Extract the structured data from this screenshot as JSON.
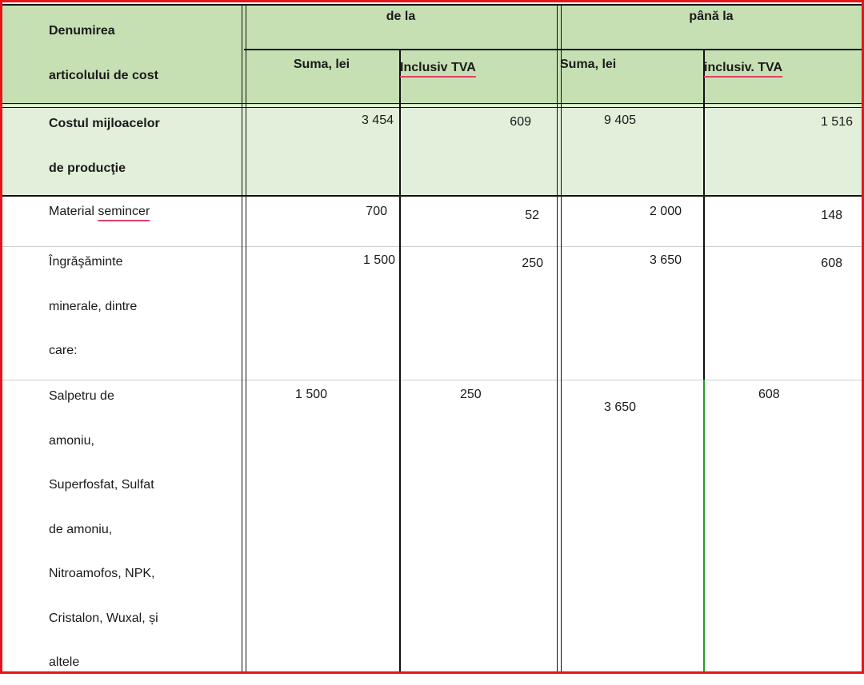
{
  "header": {
    "col_name": "Denumirea\narticolului  de cost",
    "group_from": "de la",
    "group_to": "până la",
    "from_sum": "Suma, lei",
    "from_vat": "Inclusiv TVA",
    "to_sum": "Suma, lei",
    "to_vat": "inclusiv. TVA"
  },
  "rows": [
    {
      "name": "Costul   mijloacelor\nde producţie",
      "from_sum": "3 454",
      "from_vat": "609",
      "to_sum": "9 405",
      "to_vat": "1 516"
    },
    {
      "name_pre": "Material ",
      "name_squiggle": "semincer",
      "from_sum": "700",
      "from_vat": "52",
      "to_sum": "2 000",
      "to_vat": "148"
    },
    {
      "name": "Îngrăşăminte\nminerale, dintre\ncare:",
      "from_sum": "1 500",
      "from_vat": "250",
      "to_sum": "3 650",
      "to_vat": "608"
    },
    {
      "name": "Salpetru de\namoniu,\nSuperfosfat, Sulfat\nde amoniu,\nNitroamofos, NPK,\nCristalon, Wuxal, și\naltele",
      "from_sum": "1 500",
      "from_vat": "250",
      "to_sum": "3 650",
      "to_vat": "608"
    }
  ],
  "colors": {
    "header_bg": "#c6e0b4",
    "highlight_row_bg": "#e2efda",
    "frame": "#e8141b"
  }
}
